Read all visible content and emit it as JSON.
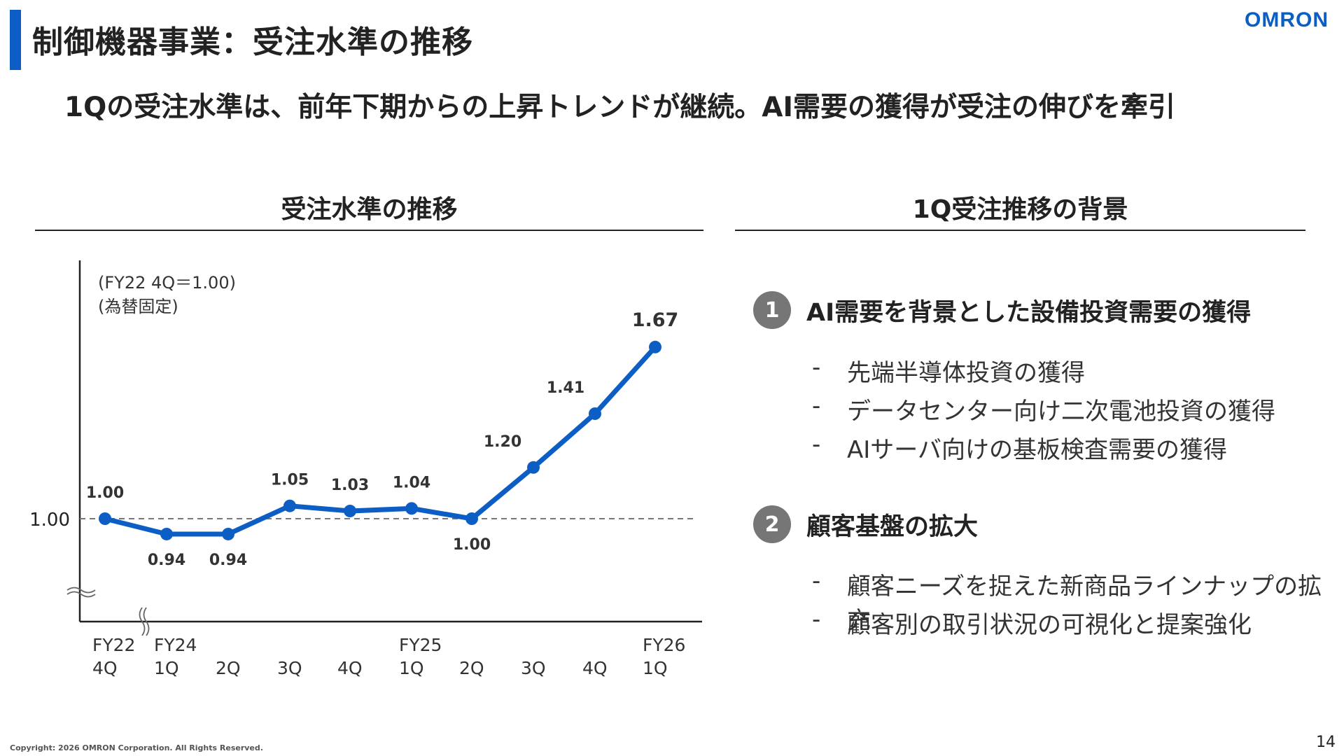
{
  "header": {
    "title": "制御機器事業：受注水準の推移",
    "logo": "OMRON",
    "subtitle": "1Qの受注水準は、前年下期からの上昇トレンドが継続。AI需要の獲得が受注の伸びを牽引"
  },
  "left_section": {
    "heading": "受注水準の推移"
  },
  "chart_data": {
    "type": "line",
    "note_line1": "(FY22 4Q＝1.00)",
    "note_line2": "(為替固定)",
    "reference_label": "1.00",
    "reference_value": 1.0,
    "x_quarters": [
      "4Q",
      "1Q",
      "2Q",
      "3Q",
      "4Q",
      "1Q",
      "2Q",
      "3Q",
      "4Q",
      "1Q"
    ],
    "x_years": [
      "FY22",
      "FY24",
      "",
      "",
      "",
      "FY25",
      "",
      "",
      "",
      "FY26"
    ],
    "values": [
      1.0,
      0.94,
      0.94,
      1.05,
      1.03,
      1.04,
      1.0,
      1.2,
      1.41,
      1.67
    ],
    "value_labels": [
      "1.00",
      "0.94",
      "0.94",
      "1.05",
      "1.03",
      "1.04",
      "1.00",
      "1.20",
      "1.41",
      "1.67"
    ],
    "axis_break": true,
    "line_color": "#0d5ec4"
  },
  "right_section": {
    "heading": "1Q受注推移の背景",
    "items": [
      {
        "number": "1",
        "title": "AI需要を背景とした設備投資需要の獲得",
        "bullets": [
          "先端半導体投資の獲得",
          "データセンター向け二次電池投資の獲得",
          "AIサーバ向けの基板検査需要の獲得"
        ]
      },
      {
        "number": "2",
        "title": "顧客基盤の拡大",
        "bullets": [
          "顧客ニーズを捉えた新商品ラインナップの拡充",
          "顧客別の取引状況の可視化と提案強化"
        ]
      }
    ],
    "dash": "-"
  },
  "footer": {
    "copyright": "Copyright: 2026 OMRON Corporation. All Rights Reserved.",
    "page_number": "14"
  }
}
